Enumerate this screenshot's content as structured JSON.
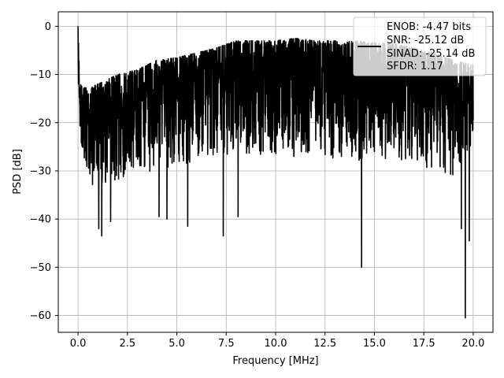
{
  "chart_data": {
    "type": "line",
    "xlabel": "Frequency [MHz]",
    "ylabel": "PSD [dB]",
    "xlim": [
      -1.0,
      21.0
    ],
    "ylim": [
      -63.5,
      3.0
    ],
    "xticks": [
      0.0,
      2.5,
      5.0,
      7.5,
      10.0,
      12.5,
      15.0,
      17.5,
      20.0
    ],
    "xtick_labels": [
      "0.0",
      "2.5",
      "5.0",
      "7.5",
      "10.0",
      "12.5",
      "15.0",
      "17.5",
      "20.0"
    ],
    "yticks": [
      0,
      -10,
      -20,
      -30,
      -40,
      -50,
      -60
    ],
    "ytick_labels": [
      "0",
      "−10",
      "−20",
      "−30",
      "−40",
      "−50",
      "−60"
    ],
    "grid": true,
    "legend_position": "top-right",
    "legend": [
      "ENOB: -4.47 bits",
      "SNR: -25.12 dB",
      "SINAD: -25.14 dB",
      "SFDR: 1.17"
    ],
    "series": [
      {
        "color": "#000000",
        "approx_envelope": {
          "x": [
            0.0,
            0.1,
            0.5,
            1.0,
            2.0,
            3.0,
            4.0,
            5.0,
            6.0,
            7.0,
            8.0,
            9.0,
            10.0,
            11.0,
            12.0,
            13.0,
            14.0,
            15.0,
            16.0,
            17.0,
            18.0,
            19.0,
            20.0
          ],
          "upper": [
            0.0,
            -12.0,
            -13.0,
            -12.0,
            -10.0,
            -9.0,
            -7.0,
            -6.5,
            -5.5,
            -4.5,
            -3.0,
            -3.0,
            -3.0,
            -2.5,
            -3.0,
            -3.0,
            -3.0,
            -3.5,
            -3.5,
            -4.5,
            -5.5,
            -7.0,
            -8.0
          ],
          "lower": [
            -10.0,
            -25.0,
            -33.0,
            -33.0,
            -32.0,
            -31.0,
            -30.0,
            -29.0,
            -28.0,
            -28.0,
            -27.0,
            -27.0,
            -27.0,
            -27.0,
            -27.0,
            -28.0,
            -28.0,
            -28.0,
            -28.0,
            -29.0,
            -30.0,
            -31.0,
            -24.0
          ]
        },
        "notable_dips": [
          {
            "x": 1.05,
            "y": -42.0
          },
          {
            "x": 1.2,
            "y": -43.5
          },
          {
            "x": 1.65,
            "y": -40.5
          },
          {
            "x": 4.1,
            "y": -39.5
          },
          {
            "x": 4.5,
            "y": -40.0
          },
          {
            "x": 5.55,
            "y": -41.5
          },
          {
            "x": 7.35,
            "y": -43.5
          },
          {
            "x": 8.1,
            "y": -39.5
          },
          {
            "x": 14.35,
            "y": -50.0
          },
          {
            "x": 19.6,
            "y": -60.5
          },
          {
            "x": 19.4,
            "y": -42.0
          },
          {
            "x": 19.8,
            "y": -44.5
          }
        ]
      }
    ]
  }
}
